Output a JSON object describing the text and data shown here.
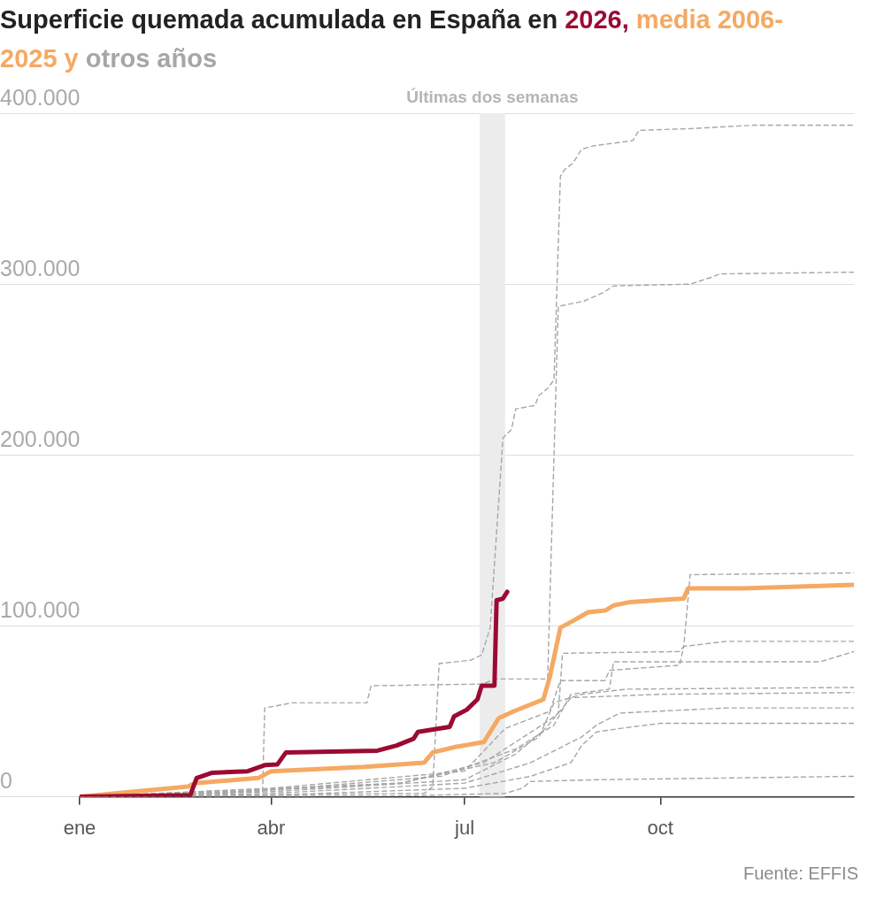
{
  "chart_data": {
    "type": "line",
    "title": "Superficie quemada acumulada en España en",
    "annotations": [
      "Fuente: EFFIS"
    ],
    "xlim": [
      "--01-01",
      "--12-31"
    ],
    "xticks": [
      {
        "value": "--01-01",
        "label": "ene"
      },
      {
        "value": "--04-01",
        "label": "abr"
      },
      {
        "value": "--07-01",
        "label": "jul"
      },
      {
        "value": "--10-01",
        "label": "oct"
      }
    ],
    "ylim": [
      0,
      400000
    ],
    "yticks": [
      0,
      {
        "value": 100000,
        "label": "100.000"
      },
      {
        "value": 200000,
        "label": "200.000"
      },
      {
        "value": 300000,
        "label": "300.000"
      },
      {
        "value": 400000,
        "label": "400.000"
      }
    ],
    "grid": "y",
    "marker": "none",
    "bands": [
      {
        "axis": "x",
        "from": "--07-08",
        "to": "--07-20",
        "label": "Últimas dos semanas",
        "color": "#ececec"
      }
    ],
    "series": [
      {
        "name": "2026,",
        "color": "#9b0a32",
        "line_style": "solid",
        "x": [
          "--01-01",
          "--02-22",
          "--02-25",
          "--03-04",
          "--03-21",
          "--03-29",
          "--04-04",
          "--04-08",
          "--05-21",
          "--05-30",
          "--06-07",
          "--06-09",
          "--06-24",
          "--06-26",
          "--07-02",
          "--07-07",
          "--07-09",
          "--07-15",
          "--07-16",
          "--07-19",
          "--07-21"
        ],
        "values": [
          0,
          1000,
          11000,
          14000,
          15000,
          18500,
          19000,
          26000,
          27000,
          30000,
          34000,
          38000,
          41000,
          47000,
          51000,
          57000,
          65000,
          65000,
          115000,
          116000,
          120000
        ]
      },
      {
        "name": "media 2006-2025 y",
        "color": "#f5a962",
        "line_style": "solid",
        "x": [
          "--01-01",
          "--02-21",
          "--02-24",
          "--03-26",
          "--04-01",
          "--05-15",
          "--06-12",
          "--06-16",
          "--06-26",
          "--07-10",
          "--07-17",
          "--07-24",
          "--08-07",
          "--08-10",
          "--08-15",
          "--08-21",
          "--08-28",
          "--09-05",
          "--09-09",
          "--09-17",
          "--10-12",
          "--10-14",
          "--11-09",
          "--12-31"
        ],
        "values": [
          0,
          6000,
          8000,
          11000,
          15000,
          17500,
          20000,
          26000,
          29000,
          32000,
          46000,
          50000,
          57000,
          70000,
          99000,
          103000,
          108000,
          109000,
          112000,
          114000,
          116000,
          122000,
          122000,
          124000
        ]
      },
      {
        "name": "otros años",
        "color": "#a6a6a6",
        "line_style": "dashed",
        "x": [
          "--01-01",
          "--06-12",
          "--06-16",
          "--06-19",
          "--07-04",
          "--07-09",
          "--07-13",
          "--07-19",
          "--07-23",
          "--07-25",
          "--08-03",
          "--08-05",
          "--08-09",
          "--08-12",
          "--08-15",
          "--08-17",
          "--08-21",
          "--08-25",
          "--08-31",
          "--09-18",
          "--09-21",
          "--10-15",
          "--11-14",
          "--12-31"
        ],
        "values": [
          0,
          2000,
          6000,
          78000,
          80000,
          83000,
          99000,
          210000,
          215000,
          227000,
          229000,
          235000,
          239000,
          244000,
          363000,
          367000,
          371000,
          379000,
          381000,
          384000,
          390000,
          391000,
          393000,
          393000
        ]
      },
      {
        "color": "#a6a6a6",
        "line_style": "dashed",
        "x": [
          "--01-01",
          "--03-28",
          "--03-29",
          "--04-11",
          "--05-16",
          "--05-18",
          "--07-09",
          "--07-16",
          "--08-09",
          "--08-14",
          "--08-26",
          "--09-04",
          "--09-09",
          "--10-15",
          "--10-25",
          "--10-29",
          "--12-31"
        ],
        "values": [
          0,
          3000,
          52000,
          55000,
          55000,
          65000,
          66000,
          69000,
          69000,
          287000,
          290000,
          295000,
          299000,
          300000,
          304000,
          306000,
          307000
        ]
      },
      {
        "color": "#a6a6a6",
        "line_style": "dashed",
        "x": [
          "--01-01",
          "--06-01",
          "--07-10",
          "--08-10",
          "--08-14",
          "--08-16",
          "--10-10",
          "--10-12",
          "--10-15",
          "--12-31"
        ],
        "values": [
          0,
          8000,
          20000,
          45000,
          49000,
          84000,
          85000,
          88000,
          130000,
          131000
        ]
      },
      {
        "color": "#a6a6a6",
        "line_style": "dashed",
        "x": [
          "--01-01",
          "--04-01",
          "--07-01",
          "--07-20",
          "--08-10",
          "--08-15",
          "--09-05",
          "--09-07",
          "--10-10",
          "--10-12",
          "--11-01",
          "--12-31"
        ],
        "values": [
          0,
          5000,
          15000,
          40000,
          50000,
          68000,
          68000,
          74000,
          77000,
          88000,
          91000,
          91000
        ]
      },
      {
        "color": "#a6a6a6",
        "line_style": "dashed",
        "x": [
          "--01-01",
          "--04-01",
          "--06-20",
          "--07-25",
          "--08-12",
          "--08-20",
          "--09-07",
          "--09-09",
          "--12-15",
          "--12-31"
        ],
        "values": [
          0,
          4000,
          12000,
          28000,
          42000,
          60000,
          63000,
          79000,
          79000,
          85000
        ]
      },
      {
        "color": "#a6a6a6",
        "line_style": "dashed",
        "x": [
          "--01-01",
          "--03-01",
          "--06-01",
          "--07-15",
          "--08-05",
          "--08-12",
          "--08-25",
          "--09-15",
          "--12-31"
        ],
        "values": [
          0,
          2000,
          8000,
          20000,
          35000,
          55000,
          60000,
          63000,
          64000
        ]
      },
      {
        "color": "#a6a6a6",
        "line_style": "dashed",
        "x": [
          "--01-01",
          "--04-01",
          "--07-01",
          "--07-25",
          "--08-08",
          "--08-20",
          "--10-01",
          "--12-31"
        ],
        "values": [
          0,
          3000,
          10000,
          25000,
          40000,
          58000,
          60000,
          61000
        ]
      },
      {
        "color": "#a6a6a6",
        "line_style": "dashed",
        "x": [
          "--01-01",
          "--04-01",
          "--07-01",
          "--08-01",
          "--08-25",
          "--09-01",
          "--09-12",
          "--11-01",
          "--12-31"
        ],
        "values": [
          0,
          2000,
          8000,
          20000,
          35000,
          42000,
          49000,
          52000,
          52000
        ]
      },
      {
        "color": "#a6a6a6",
        "line_style": "dashed",
        "x": [
          "--01-01",
          "--04-01",
          "--07-01",
          "--08-01",
          "--08-20",
          "--08-25",
          "--09-01",
          "--09-12",
          "--10-01",
          "--12-31"
        ],
        "values": [
          0,
          1000,
          5000,
          12000,
          20000,
          30000,
          38000,
          40000,
          43000,
          43000
        ]
      },
      {
        "color": "#a6a6a6",
        "line_style": "dashed",
        "x": [
          "--01-01",
          "--06-01",
          "--07-20",
          "--07-28",
          "--08-01",
          "--09-01",
          "--12-31"
        ],
        "values": [
          0,
          500,
          2000,
          5000,
          9000,
          10000,
          12000
        ]
      }
    ]
  }
}
